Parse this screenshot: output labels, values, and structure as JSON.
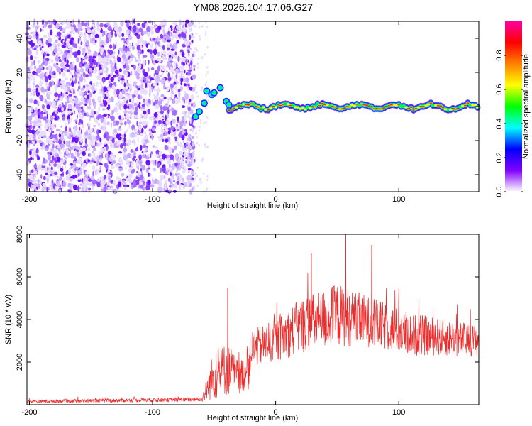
{
  "title": "YM08.2026.104.17.06.G27",
  "chart_data": [
    {
      "type": "heatmap",
      "name": "spectrogram",
      "xlabel": "Height of straight line (km)",
      "ylabel": "Frequency (Hz)",
      "xlim": [
        -202,
        165
      ],
      "ylim": [
        -50,
        50
      ],
      "xticks": [
        -200,
        -100,
        0,
        100
      ],
      "yticks": [
        -40,
        -20,
        0,
        20,
        40
      ],
      "colorbar": {
        "label": "Normalized spectral amplitude",
        "range": [
          0,
          1
        ],
        "ticks": [
          "0.0",
          "0.2",
          "0.4",
          "0.6",
          "0.8"
        ],
        "colors": [
          "#ffffff",
          "#8000ff",
          "#0000ff",
          "#00ffff",
          "#00ff00",
          "#ffff00",
          "#ff8000",
          "#ff0000",
          "#ff00a0"
        ]
      },
      "noise_region": {
        "x_range": [
          -202,
          -66
        ],
        "freq_range": [
          -50,
          50
        ]
      },
      "signal_track": {
        "freq_center_hz": 0,
        "x_range": [
          -66,
          165
        ],
        "breakup_points": [
          {
            "x": -65,
            "y": -6
          },
          {
            "x": -62,
            "y": -3
          },
          {
            "x": -58,
            "y": 2
          },
          {
            "x": -56,
            "y": 9
          },
          {
            "x": -52,
            "y": 7
          },
          {
            "x": -50,
            "y": 8
          },
          {
            "x": -45,
            "y": 11
          },
          {
            "x": -40,
            "y": 3
          },
          {
            "x": -38,
            "y": 1
          }
        ]
      }
    },
    {
      "type": "line",
      "name": "snr",
      "xlabel": "Height of straight line (km)",
      "ylabel": "SNR (10 * v/v)",
      "xlim": [
        -202,
        165
      ],
      "ylim": [
        0,
        8000
      ],
      "xticks": [
        -200,
        -100,
        0,
        100
      ],
      "yticks": [
        2000,
        4000,
        6000,
        8000
      ],
      "color": "#ee2c2c",
      "envelope": [
        {
          "x": -202,
          "base": 150,
          "amp": 150
        },
        {
          "x": -60,
          "base": 250,
          "amp": 200
        },
        {
          "x": -52,
          "base": 1200,
          "amp": 2000
        },
        {
          "x": -40,
          "base": 1700,
          "amp": 2600
        },
        {
          "x": -30,
          "base": 1300,
          "amp": 1600
        },
        {
          "x": -22,
          "base": 1600,
          "amp": 1800
        },
        {
          "x": -20,
          "base": 2600,
          "amp": 1800
        },
        {
          "x": 0,
          "base": 3000,
          "amp": 2000
        },
        {
          "x": 20,
          "base": 3700,
          "amp": 2600
        },
        {
          "x": 50,
          "base": 4200,
          "amp": 3000
        },
        {
          "x": 75,
          "base": 3900,
          "amp": 2400
        },
        {
          "x": 110,
          "base": 3300,
          "amp": 2000
        },
        {
          "x": 165,
          "base": 3000,
          "amp": 1500
        }
      ],
      "peaks": [
        {
          "x": -39,
          "y": 5500
        },
        {
          "x": 57,
          "y": 8000
        },
        {
          "x": 78,
          "y": 7500
        },
        {
          "x": 29,
          "y": 7100
        }
      ]
    }
  ]
}
